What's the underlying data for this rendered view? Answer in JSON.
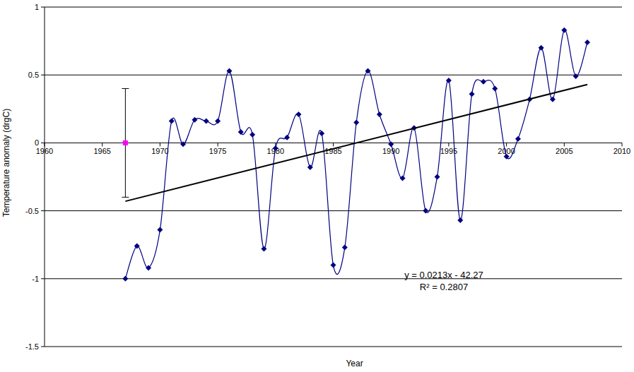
{
  "chart_data": {
    "type": "line",
    "x_label": "Year",
    "y_label": "Temperature anomaly (drgC)",
    "annotations": [
      "y = 0.0213x - 42.27",
      "R² = 0.2807"
    ],
    "xlim": [
      1960,
      2010
    ],
    "xticks": [
      1960,
      1965,
      1970,
      1975,
      1980,
      1985,
      1990,
      1995,
      2000,
      2005,
      2010
    ],
    "ylim": [
      -1.5,
      1
    ],
    "yticks": [
      -1.5,
      -1,
      -0.5,
      0,
      0.5,
      1
    ],
    "grid": true,
    "series": [
      {
        "type": "line",
        "color": "#000080",
        "marker": "diamond",
        "line_style": "smooth",
        "x": [
          1967,
          1968,
          1969,
          1970,
          1971,
          1972,
          1973,
          1974,
          1975,
          1976,
          1977,
          1978,
          1979,
          1980,
          1981,
          1982,
          1983,
          1984,
          1985,
          1986,
          1987,
          1988,
          1989,
          1990,
          1991,
          1992,
          1993,
          1994,
          1995,
          1996,
          1997,
          1998,
          1999,
          2000,
          2001,
          2002,
          2003,
          2004,
          2005,
          2006,
          2007
        ],
        "values": [
          -1.0,
          -0.76,
          -0.92,
          -0.64,
          0.16,
          -0.01,
          0.17,
          0.16,
          0.16,
          0.53,
          0.08,
          0.06,
          -0.78,
          -0.04,
          0.04,
          0.21,
          -0.18,
          0.07,
          -0.9,
          -0.77,
          0.15,
          0.53,
          0.21,
          -0.01,
          -0.26,
          0.11,
          -0.5,
          -0.25,
          0.46,
          -0.57,
          0.36,
          0.45,
          0.4,
          -0.1,
          0.03,
          0.32,
          0.7,
          0.32,
          0.83,
          0.49,
          0.74
        ]
      },
      {
        "type": "scatter",
        "color": "#ff00ff",
        "marker": "square",
        "line_style": "none",
        "x": [
          1967
        ],
        "values": [
          0
        ],
        "error": [
          0.4
        ]
      },
      {
        "type": "line",
        "color": "#000000",
        "marker": "none",
        "line_style": "solid",
        "x": [
          1967,
          2007
        ],
        "values": [
          -0.43,
          0.43
        ]
      }
    ]
  }
}
